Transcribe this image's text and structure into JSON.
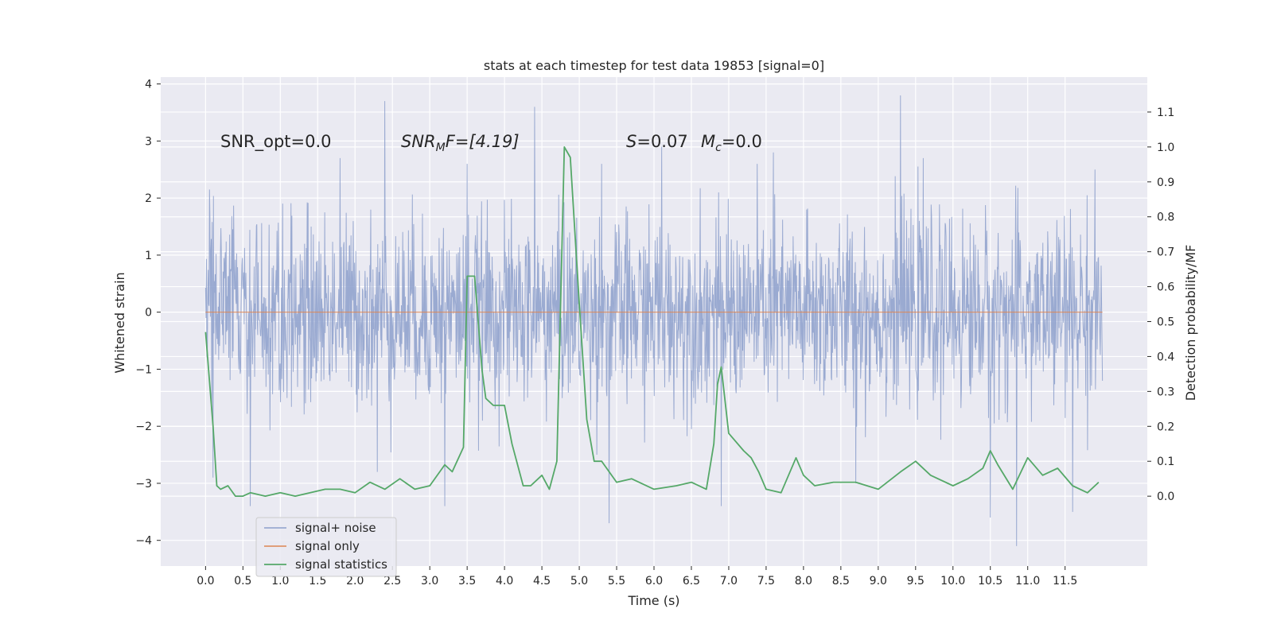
{
  "chart_data": {
    "type": "line",
    "title": "stats at each timestep for test data 19853 [signal=0]",
    "xlabel": "Time (s)",
    "ylabel": "Whitened strain",
    "ylabel_right": "Detection probability/MF",
    "xlim": [
      -0.6,
      12.6
    ],
    "ylim": [
      -4.45,
      4.12
    ],
    "ylim_right": [
      -0.2,
      1.2
    ],
    "x_ticks": [
      0.0,
      0.5,
      1.0,
      1.5,
      2.0,
      2.5,
      3.0,
      3.5,
      4.0,
      4.5,
      5.0,
      5.5,
      6.0,
      6.5,
      7.0,
      7.5,
      8.0,
      8.5,
      9.0,
      9.5,
      10.0,
      10.5,
      11.0,
      11.5
    ],
    "x_tick_labels": [
      "0.0",
      "0.5",
      "1.0",
      "1.5",
      "2.0",
      "2.5",
      "3.0",
      "3.5",
      "4.0",
      "4.5",
      "5.0",
      "5.5",
      "6.0",
      "6.5",
      "7.0",
      "7.5",
      "8.0",
      "8.5",
      "9.0",
      "9.5",
      "10.0",
      "10.5",
      "11.0",
      "11.5"
    ],
    "y_ticks": [
      -4,
      -3,
      -2,
      -1,
      0,
      1,
      2,
      3,
      4
    ],
    "y_tick_labels": [
      "−4",
      "−3",
      "−2",
      "−1",
      "0",
      "1",
      "2",
      "3",
      "4"
    ],
    "y_ticks_right": [
      0.0,
      0.1,
      0.2,
      0.3,
      0.4,
      0.5,
      0.6,
      0.7,
      0.8,
      0.9,
      1.0,
      1.1
    ],
    "y_tick_labels_right": [
      "0.0",
      "0.1",
      "0.2",
      "0.3",
      "0.4",
      "0.5",
      "0.6",
      "0.7",
      "0.8",
      "0.9",
      "1.0",
      "1.1"
    ],
    "grid": true,
    "legend_position": "lower-left",
    "annotations": {
      "snr_opt": "SNR_opt=0.0",
      "snr_mf_italic": "SNR",
      "snr_mf_sub": "M",
      "snr_mf_rest": "F=[4.19]",
      "s_italic": "S",
      "s_rest": "=0.07",
      "mc_italic": "M",
      "mc_sub": "c",
      "mc_rest": "=0.0"
    },
    "series": [
      {
        "name": "signal+ noise",
        "color": "#8c9fcb",
        "x_start": 0.0,
        "x_end": 12.0,
        "samples": 2048,
        "envelope": "whitened Gaussian noise, typical range ±1.2, extremes -4.1 to 3.8",
        "peaks": [
          [
            0.05,
            2.15
          ],
          [
            0.6,
            2.6
          ],
          [
            1.8,
            2.7
          ],
          [
            2.4,
            3.7
          ],
          [
            3.5,
            2.6
          ],
          [
            4.4,
            3.6
          ],
          [
            5.3,
            2.6
          ],
          [
            6.1,
            2.9
          ],
          [
            7.6,
            2.8
          ],
          [
            9.3,
            3.8
          ],
          [
            9.6,
            2.7
          ],
          [
            10.5,
            3.0
          ],
          [
            11.9,
            2.5
          ]
        ],
        "troughs": [
          [
            0.1,
            -2.9
          ],
          [
            0.6,
            -3.4
          ],
          [
            2.3,
            -2.8
          ],
          [
            3.2,
            -3.4
          ],
          [
            5.4,
            -3.7
          ],
          [
            6.9,
            -3.4
          ],
          [
            8.7,
            -3.0
          ],
          [
            10.5,
            -3.6
          ],
          [
            10.85,
            -4.1
          ],
          [
            11.6,
            -3.5
          ]
        ]
      },
      {
        "name": "signal only",
        "color": "#dd8452",
        "x": [
          0.0,
          12.0
        ],
        "y": [
          0.0,
          0.0
        ]
      },
      {
        "name": "signal statistics",
        "color": "#55a868",
        "axis": "right",
        "x": [
          0.0,
          0.1,
          0.15,
          0.2,
          0.3,
          0.4,
          0.5,
          0.6,
          0.8,
          1.0,
          1.2,
          1.4,
          1.6,
          1.8,
          2.0,
          2.2,
          2.4,
          2.6,
          2.8,
          3.0,
          3.2,
          3.3,
          3.45,
          3.5,
          3.6,
          3.7,
          3.75,
          3.85,
          4.0,
          4.1,
          4.25,
          4.35,
          4.5,
          4.6,
          4.7,
          4.8,
          4.88,
          5.0,
          5.1,
          5.2,
          5.3,
          5.5,
          5.7,
          6.0,
          6.3,
          6.5,
          6.7,
          6.8,
          6.85,
          6.9,
          7.0,
          7.2,
          7.3,
          7.4,
          7.5,
          7.7,
          7.9,
          8.0,
          8.15,
          8.4,
          8.7,
          9.0,
          9.3,
          9.5,
          9.7,
          10.0,
          10.2,
          10.4,
          10.5,
          10.6,
          10.8,
          11.0,
          11.2,
          11.4,
          11.6,
          11.8,
          11.95
        ],
        "y": [
          0.47,
          0.2,
          0.03,
          0.02,
          0.03,
          0.0,
          0.0,
          0.01,
          0.0,
          0.01,
          0.0,
          0.01,
          0.02,
          0.02,
          0.01,
          0.04,
          0.02,
          0.05,
          0.02,
          0.03,
          0.09,
          0.07,
          0.14,
          0.63,
          0.63,
          0.36,
          0.28,
          0.26,
          0.26,
          0.15,
          0.03,
          0.03,
          0.06,
          0.02,
          0.1,
          1.0,
          0.97,
          0.55,
          0.22,
          0.1,
          0.1,
          0.04,
          0.05,
          0.02,
          0.03,
          0.04,
          0.02,
          0.15,
          0.32,
          0.37,
          0.18,
          0.13,
          0.11,
          0.07,
          0.02,
          0.01,
          0.11,
          0.06,
          0.03,
          0.04,
          0.04,
          0.02,
          0.07,
          0.1,
          0.06,
          0.03,
          0.05,
          0.08,
          0.13,
          0.09,
          0.02,
          0.11,
          0.06,
          0.08,
          0.03,
          0.01,
          0.04
        ]
      }
    ]
  }
}
